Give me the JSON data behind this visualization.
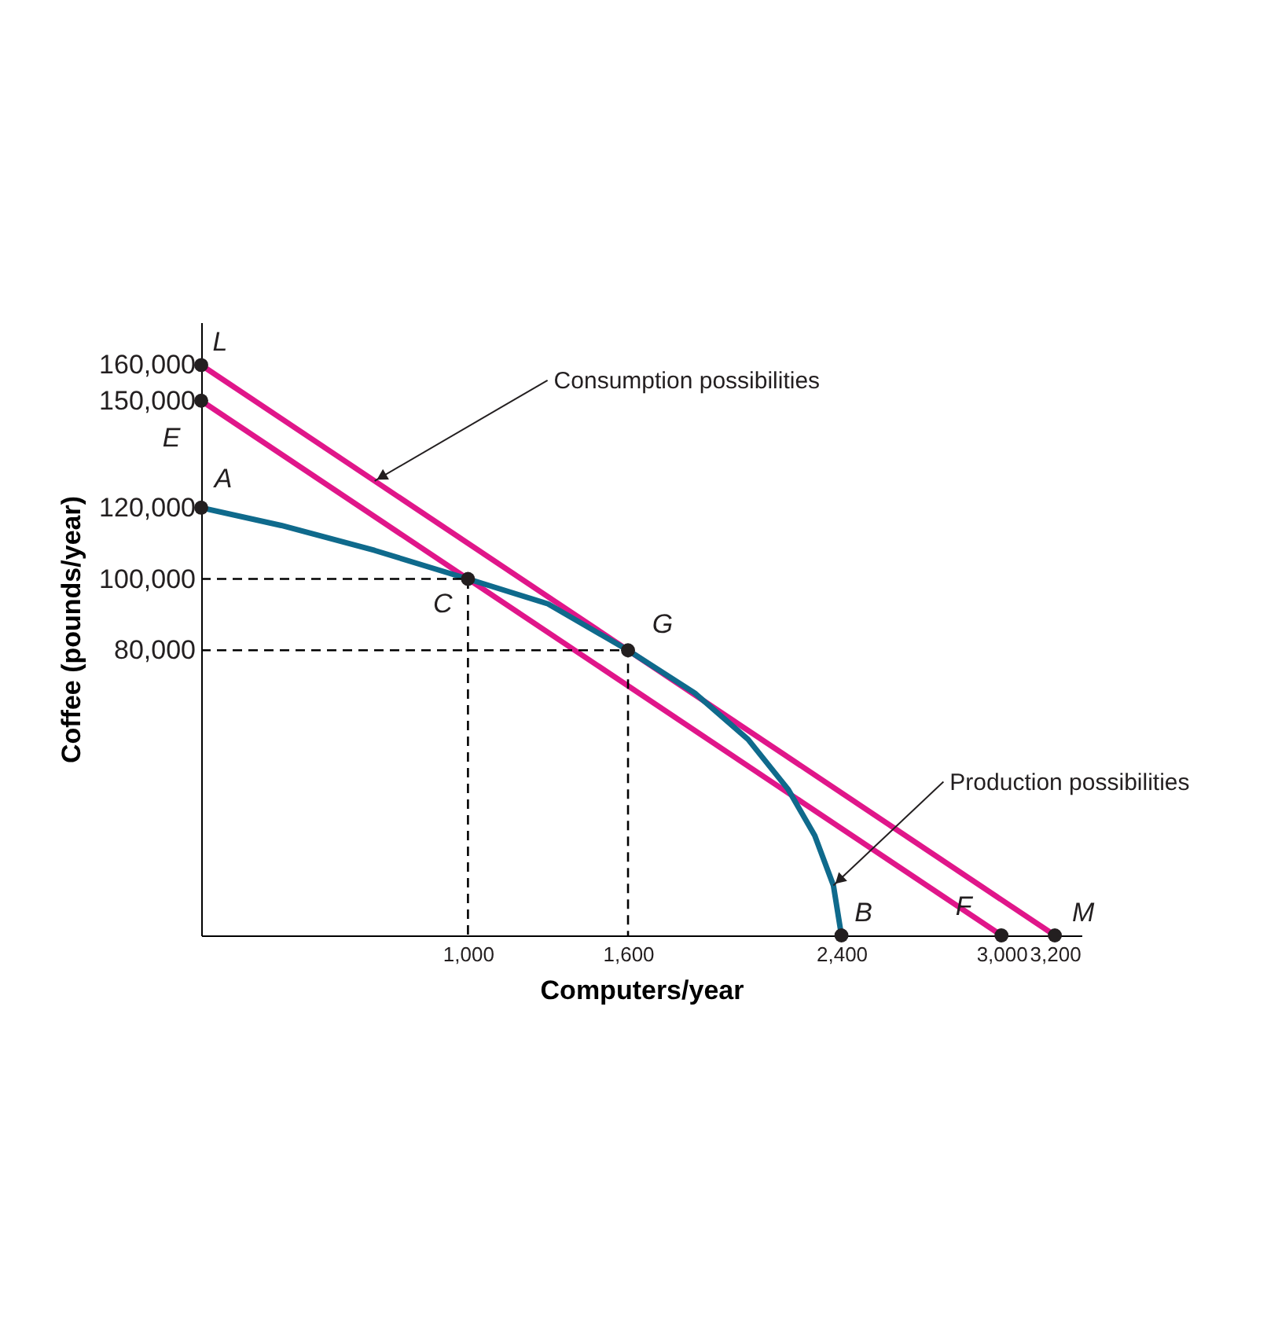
{
  "chart_data": {
    "type": "line",
    "xlabel": "Computers/year",
    "ylabel": "Coffee (pounds/year)",
    "xlim": [
      0,
      3300
    ],
    "ylim": [
      0,
      172000
    ],
    "xticks": [
      {
        "value": 1000,
        "label": "1,000"
      },
      {
        "value": 1600,
        "label": "1,600"
      },
      {
        "value": 2400,
        "label": "2,400"
      },
      {
        "value": 3000,
        "label": "3,000"
      },
      {
        "value": 3200,
        "label": "3,200"
      }
    ],
    "yticks": [
      {
        "value": 80000,
        "label": "80,000"
      },
      {
        "value": 100000,
        "label": "100,000"
      },
      {
        "value": 120000,
        "label": "120,000"
      },
      {
        "value": 150000,
        "label": "150,000"
      },
      {
        "value": 160000,
        "label": "160,000"
      }
    ],
    "grid": false,
    "series": [
      {
        "type": "line",
        "color": "#e0168a",
        "x": [
          0,
          3200
        ],
        "values": [
          160000,
          0
        ]
      },
      {
        "type": "line",
        "color": "#e0168a",
        "x": [
          0,
          3000
        ],
        "values": [
          150000,
          0
        ]
      },
      {
        "type": "line",
        "color": "#0f6a8c",
        "x": [
          0,
          300,
          650,
          1000,
          1300,
          1600,
          1850,
          2050,
          2200,
          2300,
          2370,
          2400
        ],
        "values": [
          120000,
          115000,
          108000,
          100000,
          93000,
          80000,
          68000,
          55000,
          41000,
          28000,
          14000,
          0
        ]
      },
      {
        "type": "line",
        "color": "#000000",
        "line_style": "dashed",
        "x": [
          0,
          1000,
          1000
        ],
        "values": [
          100000,
          100000,
          0
        ]
      },
      {
        "type": "line",
        "color": "#000000",
        "line_style": "dashed",
        "x": [
          0,
          1600,
          1600
        ],
        "values": [
          80000,
          80000,
          0
        ]
      },
      {
        "type": "scatter",
        "color": "#231f20",
        "marker": "circle",
        "x": [
          0,
          0,
          0,
          1000,
          1600,
          2400,
          3000,
          3200
        ],
        "values": [
          160000,
          150000,
          120000,
          100000,
          80000,
          0,
          0,
          0
        ]
      }
    ],
    "annotations": [
      {
        "text": "L",
        "x": 0,
        "y": 160000
      },
      {
        "text": "E",
        "x": 0,
        "y": 150000
      },
      {
        "text": "A",
        "x": 0,
        "y": 120000
      },
      {
        "text": "C",
        "x": 1000,
        "y": 100000
      },
      {
        "text": "G",
        "x": 1600,
        "y": 80000
      },
      {
        "text": "B",
        "x": 2400,
        "y": 0
      },
      {
        "text": "F",
        "x": 3000,
        "y": 0
      },
      {
        "text": "M",
        "x": 3200,
        "y": 0
      },
      {
        "text": "Consumption possibilities",
        "x": 650,
        "y": 127500
      },
      {
        "text": "Production possibilities",
        "x": 2370,
        "y": 14000
      }
    ]
  }
}
